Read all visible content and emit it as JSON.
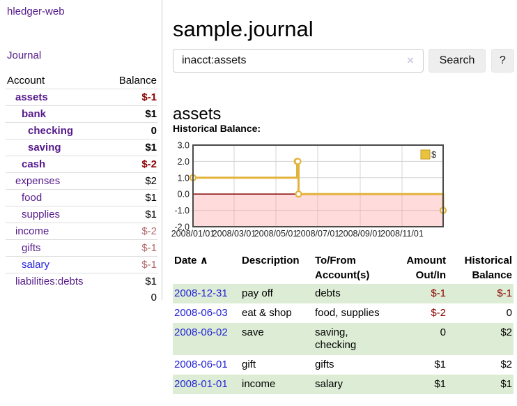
{
  "app_title": "hledger-web",
  "nav": {
    "journal_label": "Journal"
  },
  "sidebar": {
    "headers": {
      "account": "Account",
      "balance": "Balance"
    },
    "accounts": [
      {
        "name": "assets",
        "depth": 1,
        "bold": true,
        "link": "visited",
        "balance": "$-1",
        "balance_style": "neg-strong"
      },
      {
        "name": "bank",
        "depth": 2,
        "bold": true,
        "link": "visited",
        "balance": "$1",
        "balance_style": "pos-strong"
      },
      {
        "name": "checking",
        "depth": 3,
        "bold": true,
        "link": "visited",
        "balance": "0",
        "balance_style": "pos-strong"
      },
      {
        "name": "saving",
        "depth": 3,
        "bold": true,
        "link": "visited",
        "balance": "$1",
        "balance_style": "pos-strong"
      },
      {
        "name": "cash",
        "depth": 2,
        "bold": true,
        "link": "visited",
        "balance": "$-2",
        "balance_style": "neg-strong"
      },
      {
        "name": "expenses",
        "depth": 1,
        "bold": false,
        "link": "visited",
        "balance": "$2",
        "balance_style": "plain"
      },
      {
        "name": "food",
        "depth": 2,
        "bold": false,
        "link": "visited",
        "balance": "$1",
        "balance_style": "plain"
      },
      {
        "name": "supplies",
        "depth": 2,
        "bold": false,
        "link": "visited",
        "balance": "$1",
        "balance_style": "plain"
      },
      {
        "name": "income",
        "depth": 1,
        "bold": false,
        "link": "visited",
        "balance": "$-2",
        "balance_style": "neg-soft"
      },
      {
        "name": "gifts",
        "depth": 2,
        "bold": false,
        "link": "visited",
        "balance": "$-1",
        "balance_style": "neg-soft"
      },
      {
        "name": "salary",
        "depth": 2,
        "bold": false,
        "link": "unvisited",
        "balance": "$-1",
        "balance_style": "neg-soft"
      },
      {
        "name": "liabilities:debts",
        "depth": 1,
        "bold": false,
        "link": "visited",
        "balance": "$1",
        "balance_style": "plain"
      }
    ],
    "total": "0"
  },
  "header": {
    "title": "sample.journal"
  },
  "search": {
    "value": "inacct:assets",
    "clear_icon": "×",
    "button_label": "Search",
    "help_label": "?"
  },
  "account_page": {
    "title": "assets",
    "chart_label": "Historical Balance:"
  },
  "chart_data": {
    "type": "line",
    "title": "Historical Balance",
    "step": true,
    "x_domain": [
      "2008-01-01",
      "2008-12-31"
    ],
    "ylim": [
      -2,
      3
    ],
    "y_ticks": [
      3.0,
      2.0,
      1.0,
      0.0,
      -1.0,
      -2.0
    ],
    "x_tick_labels": [
      "2008/01/01",
      "2008/03/01",
      "2008/05/01",
      "2008/07/01",
      "2008/09/01",
      "2008/11/01"
    ],
    "legend": {
      "position": "top-right",
      "entries": [
        "$"
      ]
    },
    "grid": true,
    "negative_region_shaded": true,
    "series": [
      {
        "name": "$",
        "points": [
          [
            "2008-01-01",
            1
          ],
          [
            "2008-06-01",
            2
          ],
          [
            "2008-06-02",
            2
          ],
          [
            "2008-06-03",
            0
          ],
          [
            "2008-12-31",
            -1
          ]
        ]
      }
    ]
  },
  "register": {
    "columns": [
      {
        "label": "Date",
        "sort_icon": "∧"
      },
      {
        "label": "Description"
      },
      {
        "label": "To/From\nAccount(s)"
      },
      {
        "label": "Amount\nOut/In"
      },
      {
        "label": "Historical\nBalance"
      }
    ],
    "rows": [
      {
        "date": "2008-12-31",
        "description": "pay off",
        "accounts": "debts",
        "amount": "$-1",
        "amount_negative": true,
        "balance": "$-1",
        "balance_negative": true
      },
      {
        "date": "2008-06-03",
        "description": "eat & shop",
        "accounts": "food, supplies",
        "amount": "$-2",
        "amount_negative": true,
        "balance": "0",
        "balance_negative": false
      },
      {
        "date": "2008-06-02",
        "description": "save",
        "accounts": "saving,\nchecking",
        "amount": "0",
        "amount_negative": false,
        "balance": "$2",
        "balance_negative": false
      },
      {
        "date": "2008-06-01",
        "description": "gift",
        "accounts": "gifts",
        "amount": "$1",
        "amount_negative": false,
        "balance": "$2",
        "balance_negative": false
      },
      {
        "date": "2008-01-01",
        "description": "income",
        "accounts": "salary",
        "amount": "$1",
        "amount_negative": false,
        "balance": "$1",
        "balance_negative": false
      }
    ]
  },
  "colors": {
    "link_purple": "#551a8b",
    "link_blue": "#2222dd",
    "negative_strong": "#8b0000",
    "negative_soft": "#b16a6a",
    "row_stripe_green": "#ddedd5",
    "chart_line_gold": "#e2b33c",
    "chart_negative_fill": "#fcdede",
    "chart_zero_line": "#8e1414",
    "chart_border": "#4a4a4a",
    "grid_gray": "#d4d4d4"
  }
}
